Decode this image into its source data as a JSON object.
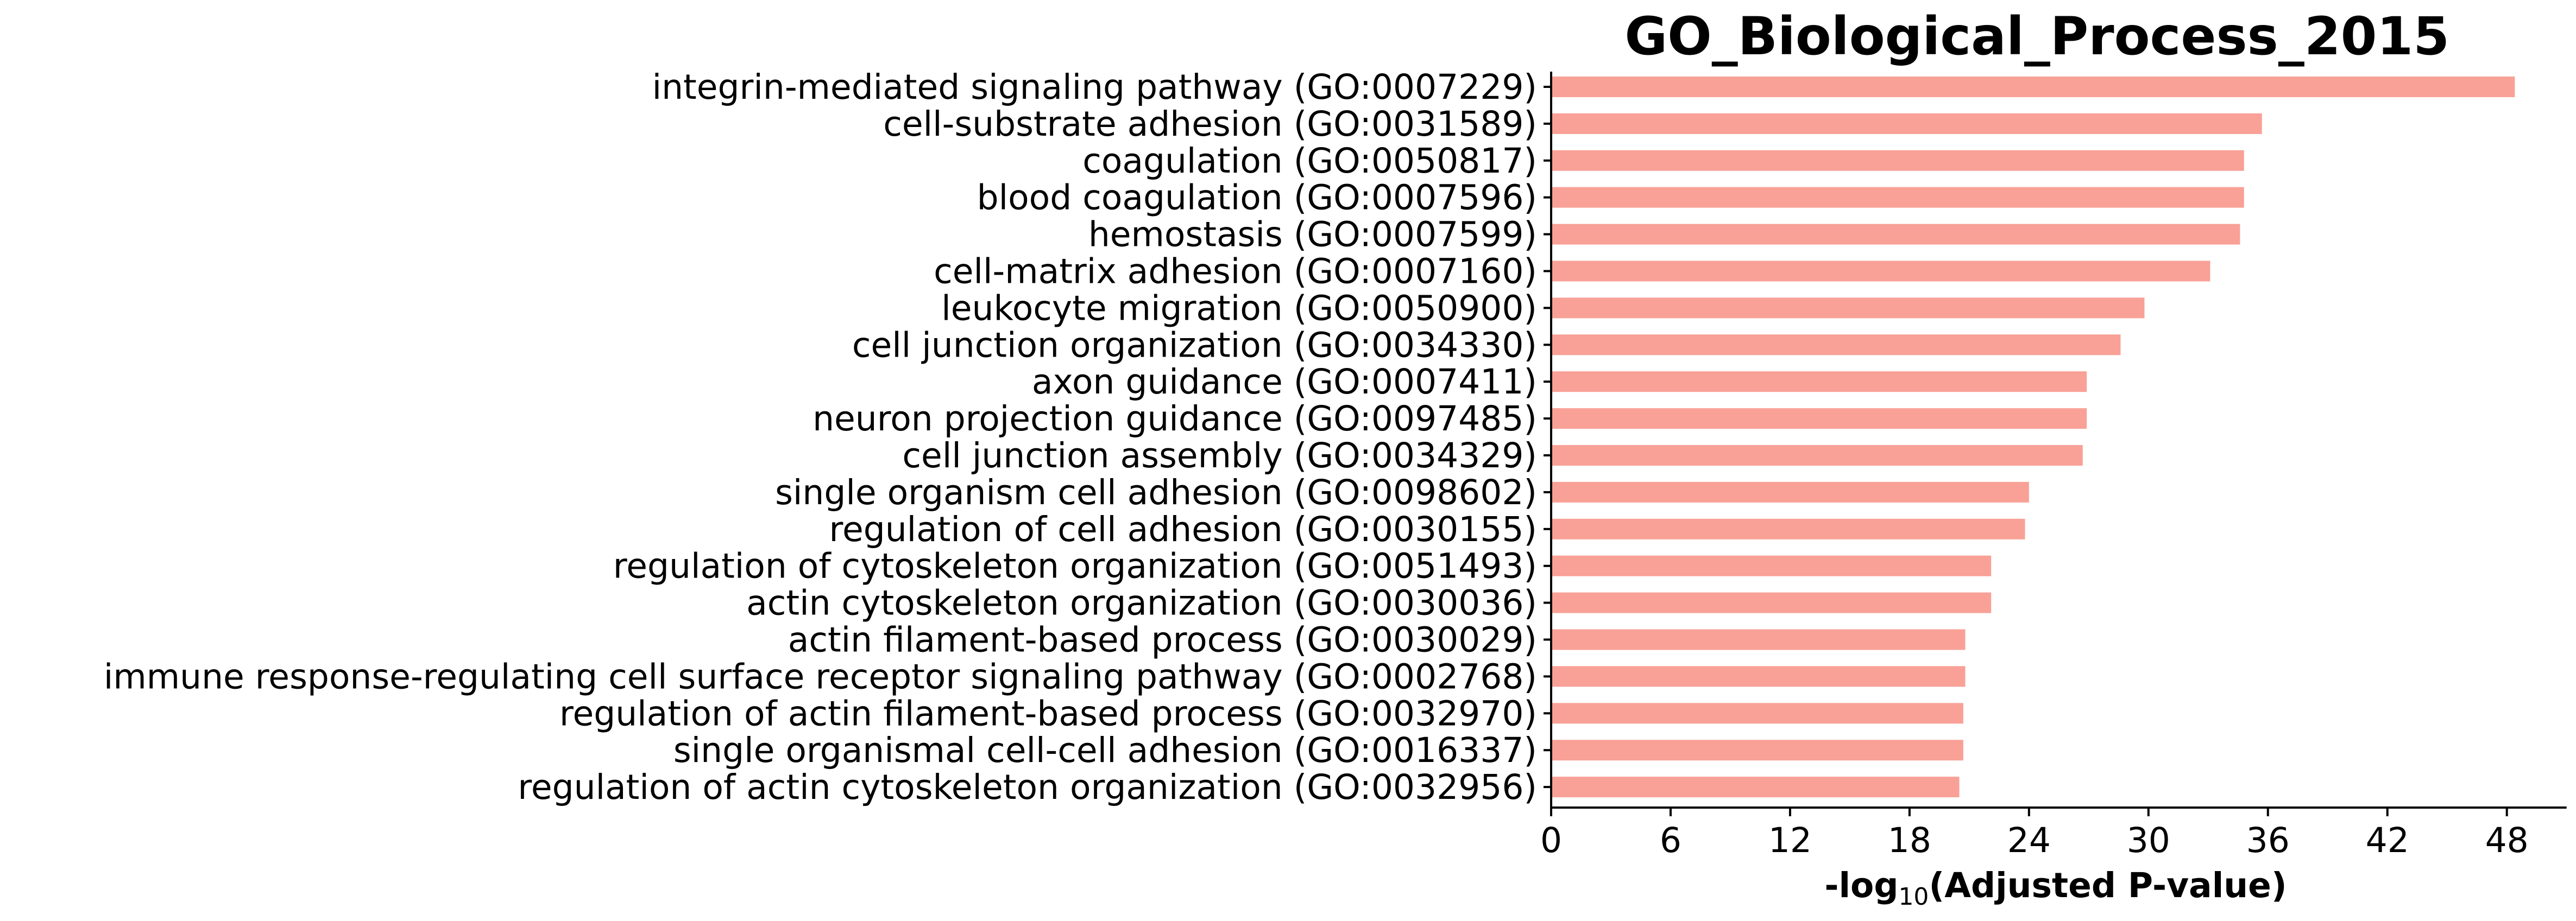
{
  "colors": {
    "bar": "#F9A197",
    "axis": "#000000"
  },
  "chart_data": {
    "type": "bar",
    "orientation": "horizontal",
    "title": "GO_Biological_Process_2015",
    "xlabel": {
      "prefix": "-log",
      "subscript": "10",
      "suffix": "(Adjusted P-value)"
    },
    "ylabel": "",
    "xlim": [
      0,
      51
    ],
    "xticks": [
      0,
      6,
      12,
      18,
      24,
      30,
      36,
      42,
      48
    ],
    "grid": false,
    "categories": [
      "integrin-mediated signaling pathway (GO:0007229)",
      "cell-substrate adhesion (GO:0031589)",
      "coagulation (GO:0050817)",
      "blood coagulation (GO:0007596)",
      "hemostasis (GO:0007599)",
      "cell-matrix adhesion (GO:0007160)",
      "leukocyte migration (GO:0050900)",
      "cell junction organization (GO:0034330)",
      "axon guidance (GO:0007411)",
      "neuron projection guidance (GO:0097485)",
      "cell junction assembly (GO:0034329)",
      "single organism cell adhesion (GO:0098602)",
      "regulation of cell adhesion (GO:0030155)",
      "regulation of cytoskeleton organization (GO:0051493)",
      "actin cytoskeleton organization (GO:0030036)",
      "actin filament-based process (GO:0030029)",
      "immune response-regulating cell surface receptor signaling pathway (GO:0002768)",
      "regulation of actin filament-based process (GO:0032970)",
      "single organismal cell-cell adhesion (GO:0016337)",
      "regulation of actin cytoskeleton organization (GO:0032956)"
    ],
    "values": [
      48.4,
      35.7,
      34.8,
      34.8,
      34.6,
      33.1,
      29.8,
      28.6,
      26.9,
      26.9,
      26.7,
      24.0,
      23.8,
      22.1,
      22.1,
      20.8,
      20.8,
      20.7,
      20.7,
      20.5
    ]
  }
}
